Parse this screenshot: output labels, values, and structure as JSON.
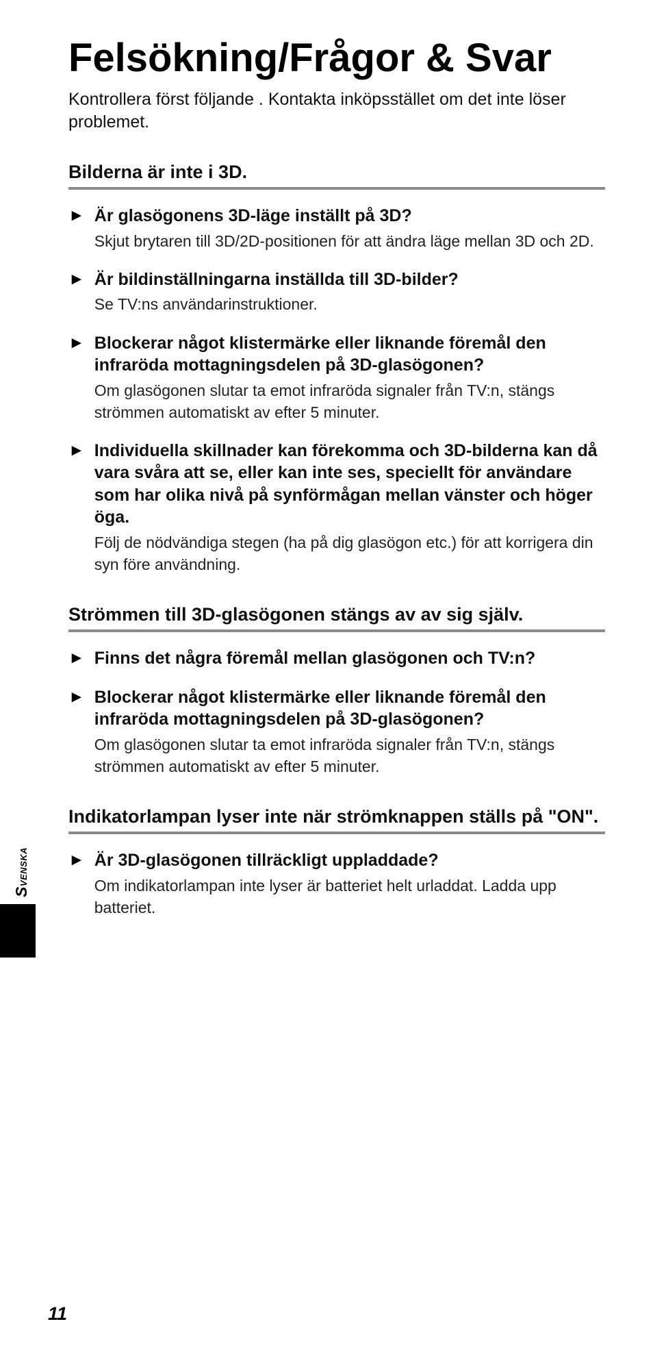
{
  "title": "Felsökning/Frågor & Svar",
  "intro": "Kontrollera först följande . Kontakta inköpsstället om det inte löser problemet.",
  "sections": [
    {
      "heading": "Bilderna är inte i 3D.",
      "items": [
        {
          "q": "Är glasögonens 3D-läge inställt på 3D?",
          "a": "Skjut brytaren till 3D/2D-positionen för att ändra läge mellan 3D och 2D."
        },
        {
          "q": "Är bildinställningarna inställda till 3D-bilder?",
          "a": "Se TV:ns användarinstruktioner."
        },
        {
          "q": "Blockerar något klistermärke eller liknande föremål den infraröda mottagningsdelen på 3D-glasögonen?",
          "a": "Om glasögonen slutar ta emot infraröda signaler från TV:n, stängs strömmen automatiskt av efter 5 minuter."
        },
        {
          "q": "Individuella skillnader kan förekomma och 3D-bilderna kan då vara svåra att se, eller kan inte ses, speciellt för användare som har olika nivå på synförmågan mellan vänster och höger öga.",
          "a": "Följ de nödvändiga stegen (ha på dig glasögon etc.) för att korrigera din syn före användning."
        }
      ]
    },
    {
      "heading": "Strömmen till 3D-glasögonen stängs av av sig själv.",
      "items": [
        {
          "q": "Finns det några föremål mellan glasögonen och TV:n?",
          "a": ""
        },
        {
          "q": "Blockerar något klistermärke eller liknande föremål den infraröda mottagningsdelen på 3D-glasögonen?",
          "a": "Om glasögonen slutar ta emot infraröda signaler från TV:n, stängs strömmen automatiskt av efter 5 minuter."
        }
      ]
    },
    {
      "heading": "Indikatorlampan lyser inte när strömknappen ställs på \"ON\".",
      "items": [
        {
          "q": "Är 3D-glasögonen tillräckligt uppladdade?",
          "a": "Om indikatorlampan inte lyser är batteriet helt urladdat. Ladda upp batteriet."
        }
      ]
    }
  ],
  "side_label_cap": "S",
  "side_label_rest": "venska",
  "page_number": "11",
  "bullet_glyph": "►"
}
